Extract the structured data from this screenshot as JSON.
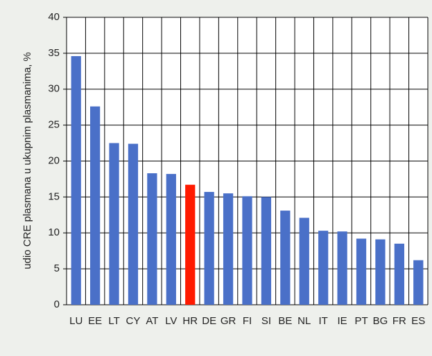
{
  "chart_data": {
    "type": "bar",
    "y_axis_label": "udio CRE plasmana u ukupnim plasmanima, %",
    "categories": [
      "LU",
      "EE",
      "LT",
      "CY",
      "AT",
      "LV",
      "HR",
      "DE",
      "GR",
      "FI",
      "SI",
      "BE",
      "NL",
      "IT",
      "IE",
      "PT",
      "BG",
      "FR",
      "ES"
    ],
    "values": [
      34.6,
      27.6,
      22.5,
      22.4,
      18.3,
      18.2,
      16.7,
      15.7,
      15.5,
      15.1,
      15.0,
      13.1,
      12.1,
      10.3,
      10.2,
      9.2,
      9.1,
      8.5,
      6.2
    ],
    "colors": [
      "#4a70c8",
      "#4a70c8",
      "#4a70c8",
      "#4a70c8",
      "#4a70c8",
      "#4a70c8",
      "#ff1a00",
      "#4a70c8",
      "#4a70c8",
      "#4a70c8",
      "#4a70c8",
      "#4a70c8",
      "#4a70c8",
      "#4a70c8",
      "#4a70c8",
      "#4a70c8",
      "#4a70c8",
      "#4a70c8",
      "#4a70c8"
    ],
    "ylim": [
      0,
      40
    ],
    "yticks": [
      0,
      5,
      10,
      15,
      20,
      25,
      30,
      35,
      40
    ],
    "grid": true
  }
}
